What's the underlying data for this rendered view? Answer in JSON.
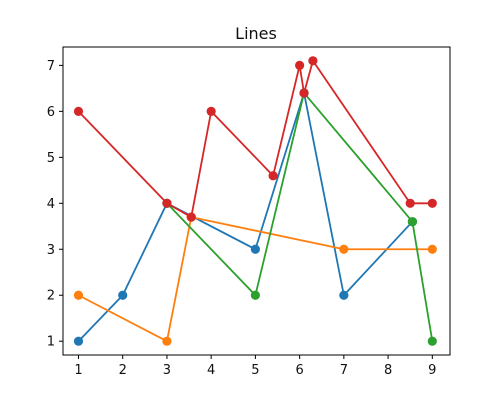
{
  "chart_data": {
    "type": "line",
    "title": "Lines",
    "xlabel": "",
    "ylabel": "",
    "xlim": [
      0.65,
      9.4
    ],
    "ylim": [
      0.7,
      7.4
    ],
    "x_ticks": [
      1,
      2,
      3,
      4,
      5,
      6,
      7,
      8,
      9
    ],
    "y_ticks": [
      1,
      2,
      3,
      4,
      5,
      6,
      7
    ],
    "grid": false,
    "legend": "none",
    "series": [
      {
        "color": "#1f77b4",
        "points": [
          [
            1,
            1
          ],
          [
            2,
            2
          ],
          [
            3,
            4
          ],
          [
            5,
            3
          ],
          [
            6.1,
            6.4
          ],
          [
            7,
            2
          ],
          [
            8.55,
            3.6
          ]
        ]
      },
      {
        "color": "#ff7f0e",
        "points": [
          [
            1,
            2
          ],
          [
            3,
            1
          ],
          [
            3.55,
            3.7
          ],
          [
            7,
            3
          ],
          [
            9,
            3
          ]
        ]
      },
      {
        "color": "#2ca02c",
        "points": [
          [
            3,
            4
          ],
          [
            5,
            2
          ],
          [
            6.1,
            6.4
          ],
          [
            8.55,
            3.6
          ],
          [
            9,
            1
          ]
        ]
      },
      {
        "color": "#d62728",
        "points": [
          [
            1,
            6
          ],
          [
            3,
            4
          ],
          [
            3.55,
            3.7
          ],
          [
            4,
            6
          ],
          [
            5.4,
            4.6
          ],
          [
            6,
            7
          ],
          [
            6.1,
            6.4
          ],
          [
            6.3,
            7.1
          ],
          [
            8.5,
            4
          ],
          [
            9,
            4
          ]
        ]
      }
    ]
  }
}
